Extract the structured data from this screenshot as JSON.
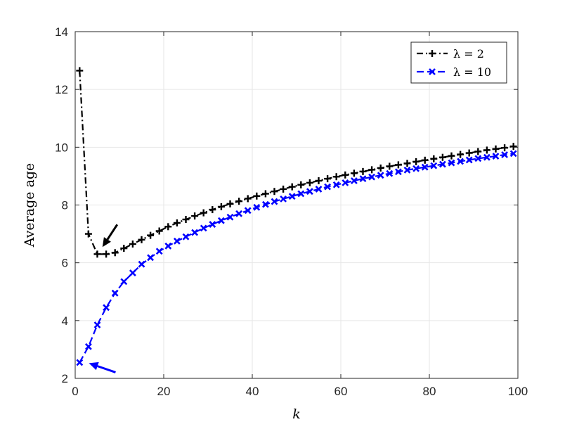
{
  "chart_data": {
    "type": "line",
    "xlabel": "k",
    "ylabel": "Average age",
    "xlim": [
      0,
      100
    ],
    "ylim": [
      2,
      14
    ],
    "xticks": [
      0,
      20,
      40,
      60,
      80,
      100
    ],
    "yticks": [
      2,
      4,
      6,
      8,
      10,
      12,
      14
    ],
    "grid": true,
    "legend_position": "top-right",
    "series": [
      {
        "name": "λ = 2",
        "color": "#000000",
        "line_style": "dash-dot",
        "marker": "plus",
        "x": [
          1,
          3,
          5,
          7,
          9,
          11,
          13,
          15,
          17,
          19,
          21,
          23,
          25,
          27,
          29,
          31,
          33,
          35,
          37,
          39,
          41,
          43,
          45,
          47,
          49,
          51,
          53,
          55,
          57,
          59,
          61,
          63,
          65,
          67,
          69,
          71,
          73,
          75,
          77,
          79,
          81,
          83,
          85,
          87,
          89,
          91,
          93,
          95,
          97,
          99
        ],
        "values": [
          12.65,
          7.0,
          6.3,
          6.3,
          6.35,
          6.5,
          6.65,
          6.8,
          6.95,
          7.1,
          7.25,
          7.38,
          7.5,
          7.62,
          7.73,
          7.84,
          7.94,
          8.04,
          8.13,
          8.22,
          8.31,
          8.39,
          8.47,
          8.55,
          8.63,
          8.7,
          8.77,
          8.84,
          8.91,
          8.98,
          9.04,
          9.1,
          9.16,
          9.22,
          9.28,
          9.34,
          9.39,
          9.44,
          9.5,
          9.55,
          9.6,
          9.65,
          9.7,
          9.75,
          9.8,
          9.85,
          9.9,
          9.94,
          9.98,
          10.03
        ]
      },
      {
        "name": "λ = 10",
        "color": "#0000ff",
        "line_style": "dashed",
        "marker": "x",
        "x": [
          1,
          3,
          5,
          7,
          9,
          11,
          13,
          15,
          17,
          19,
          21,
          23,
          25,
          27,
          29,
          31,
          33,
          35,
          37,
          39,
          41,
          43,
          45,
          47,
          49,
          51,
          53,
          55,
          57,
          59,
          61,
          63,
          65,
          67,
          69,
          71,
          73,
          75,
          77,
          79,
          81,
          83,
          85,
          87,
          89,
          91,
          93,
          95,
          97,
          99
        ],
        "values": [
          2.55,
          3.1,
          3.85,
          4.45,
          4.95,
          5.35,
          5.65,
          5.95,
          6.18,
          6.4,
          6.58,
          6.75,
          6.9,
          7.05,
          7.2,
          7.33,
          7.46,
          7.58,
          7.7,
          7.81,
          7.92,
          8.02,
          8.12,
          8.21,
          8.3,
          8.39,
          8.47,
          8.55,
          8.63,
          8.7,
          8.77,
          8.84,
          8.91,
          8.97,
          9.03,
          9.09,
          9.15,
          9.21,
          9.26,
          9.31,
          9.36,
          9.41,
          9.46,
          9.51,
          9.56,
          9.61,
          9.65,
          9.69,
          9.74,
          9.78
        ]
      }
    ],
    "annotations": [
      {
        "type": "arrow",
        "color": "#000000",
        "points_to": {
          "x": 6,
          "y": 6.35
        }
      },
      {
        "type": "arrow",
        "color": "#0000ff",
        "points_to": {
          "x": 1.5,
          "y": 2.55
        }
      }
    ]
  }
}
